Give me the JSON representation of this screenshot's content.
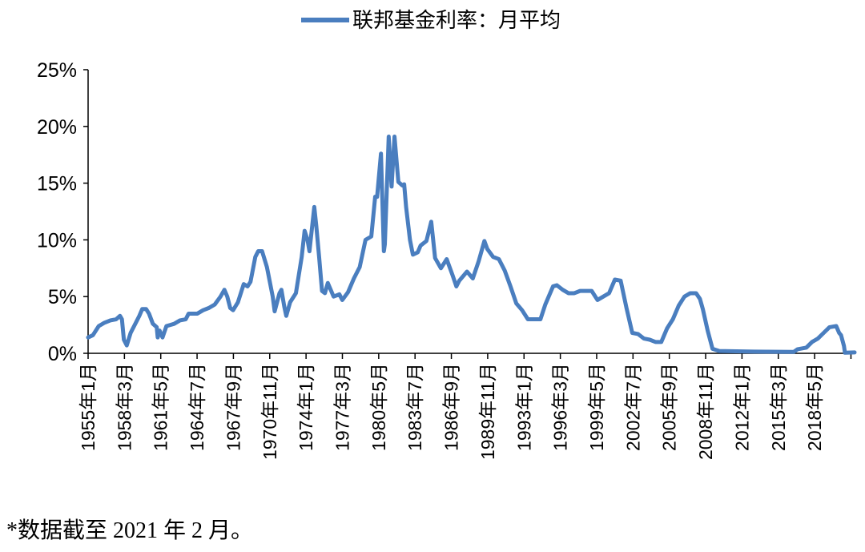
{
  "chart_data": {
    "type": "line",
    "title": "",
    "xlabel": "",
    "ylabel": "",
    "legend": {
      "position": "top-center",
      "entries": [
        "联邦基金利率：月平均"
      ]
    },
    "ylim": [
      0,
      25
    ],
    "y_ticks": [
      "0%",
      "5%",
      "10%",
      "15%",
      "20%",
      "25%"
    ],
    "y_tick_values": [
      0,
      5,
      10,
      15,
      20,
      25
    ],
    "x_range": [
      "1955-01",
      "2021-02"
    ],
    "x_tick_labels": [
      "1955年1月",
      "1958年3月",
      "1961年5月",
      "1964年7月",
      "1967年9月",
      "1970年11月",
      "1974年1月",
      "1977年3月",
      "1980年5月",
      "1983年7月",
      "1986年9月",
      "1989年11月",
      "1993年1月",
      "1996年3月",
      "1999年5月",
      "2002年7月",
      "2005年9月",
      "2008年11月",
      "2012年1月",
      "2015年3月",
      "2018年5月"
    ],
    "grid": false,
    "colors": {
      "series": "#4a7ebf",
      "axis": "#000000"
    },
    "series": [
      {
        "name": "联邦基金利率：月平均",
        "points": [
          [
            "1955-01",
            1.4
          ],
          [
            "1955-06",
            1.6
          ],
          [
            "1955-12",
            2.4
          ],
          [
            "1956-06",
            2.7
          ],
          [
            "1956-12",
            2.9
          ],
          [
            "1957-06",
            3.0
          ],
          [
            "1957-10",
            3.3
          ],
          [
            "1957-12",
            3.0
          ],
          [
            "1958-02",
            1.2
          ],
          [
            "1958-05",
            0.7
          ],
          [
            "1958-09",
            1.8
          ],
          [
            "1959-03",
            2.8
          ],
          [
            "1959-06",
            3.3
          ],
          [
            "1959-09",
            3.9
          ],
          [
            "1960-01",
            3.9
          ],
          [
            "1960-04",
            3.5
          ],
          [
            "1960-08",
            2.6
          ],
          [
            "1960-12",
            2.3
          ],
          [
            "1961-01",
            1.4
          ],
          [
            "1961-03",
            2.0
          ],
          [
            "1961-06",
            1.4
          ],
          [
            "1961-10",
            2.4
          ],
          [
            "1962-02",
            2.5
          ],
          [
            "1962-06",
            2.6
          ],
          [
            "1962-12",
            2.9
          ],
          [
            "1963-06",
            3.0
          ],
          [
            "1963-09",
            3.5
          ],
          [
            "1964-06",
            3.5
          ],
          [
            "1964-12",
            3.8
          ],
          [
            "1965-06",
            4.0
          ],
          [
            "1965-12",
            4.3
          ],
          [
            "1966-06",
            5.0
          ],
          [
            "1966-10",
            5.6
          ],
          [
            "1967-01",
            5.0
          ],
          [
            "1967-04",
            4.0
          ],
          [
            "1967-07",
            3.8
          ],
          [
            "1967-12",
            4.5
          ],
          [
            "1968-06",
            6.1
          ],
          [
            "1968-10",
            5.9
          ],
          [
            "1969-01",
            6.3
          ],
          [
            "1969-06",
            8.5
          ],
          [
            "1969-09",
            9.0
          ],
          [
            "1970-01",
            9.0
          ],
          [
            "1970-06",
            7.6
          ],
          [
            "1970-12",
            5.0
          ],
          [
            "1971-02",
            3.7
          ],
          [
            "1971-07",
            5.3
          ],
          [
            "1971-09",
            5.6
          ],
          [
            "1971-12",
            4.1
          ],
          [
            "1972-02",
            3.3
          ],
          [
            "1972-06",
            4.5
          ],
          [
            "1972-12",
            5.3
          ],
          [
            "1973-06",
            8.5
          ],
          [
            "1973-09",
            10.8
          ],
          [
            "1973-12",
            10.0
          ],
          [
            "1974-02",
            9.0
          ],
          [
            "1974-07",
            12.9
          ],
          [
            "1974-09",
            11.3
          ],
          [
            "1974-12",
            8.5
          ],
          [
            "1975-03",
            5.5
          ],
          [
            "1975-06",
            5.3
          ],
          [
            "1975-09",
            6.2
          ],
          [
            "1976-03",
            5.0
          ],
          [
            "1976-09",
            5.2
          ],
          [
            "1976-12",
            4.7
          ],
          [
            "1977-06",
            5.4
          ],
          [
            "1977-12",
            6.6
          ],
          [
            "1978-06",
            7.6
          ],
          [
            "1978-12",
            10.0
          ],
          [
            "1979-06",
            10.3
          ],
          [
            "1979-10",
            13.8
          ],
          [
            "1979-12",
            13.8
          ],
          [
            "1980-04",
            17.6
          ],
          [
            "1980-07",
            9.0
          ],
          [
            "1980-08",
            9.6
          ],
          [
            "1980-12",
            19.1
          ],
          [
            "1981-03",
            14.7
          ],
          [
            "1981-06",
            19.1
          ],
          [
            "1981-10",
            15.1
          ],
          [
            "1982-02",
            14.8
          ],
          [
            "1982-04",
            14.9
          ],
          [
            "1982-06",
            12.9
          ],
          [
            "1982-10",
            10.0
          ],
          [
            "1983-01",
            8.7
          ],
          [
            "1983-06",
            8.9
          ],
          [
            "1983-09",
            9.5
          ],
          [
            "1984-03",
            9.9
          ],
          [
            "1984-08",
            11.6
          ],
          [
            "1984-12",
            8.4
          ],
          [
            "1985-06",
            7.5
          ],
          [
            "1985-12",
            8.3
          ],
          [
            "1986-06",
            6.9
          ],
          [
            "1986-10",
            5.9
          ],
          [
            "1987-01",
            6.4
          ],
          [
            "1987-09",
            7.2
          ],
          [
            "1988-03",
            6.6
          ],
          [
            "1988-09",
            8.1
          ],
          [
            "1989-03",
            9.9
          ],
          [
            "1989-06",
            9.2
          ],
          [
            "1989-12",
            8.5
          ],
          [
            "1990-06",
            8.3
          ],
          [
            "1990-12",
            7.3
          ],
          [
            "1991-06",
            5.9
          ],
          [
            "1991-12",
            4.4
          ],
          [
            "1992-06",
            3.8
          ],
          [
            "1992-12",
            3.0
          ],
          [
            "1993-06",
            3.0
          ],
          [
            "1994-01",
            3.0
          ],
          [
            "1994-06",
            4.3
          ],
          [
            "1995-02",
            5.9
          ],
          [
            "1995-06",
            6.0
          ],
          [
            "1995-12",
            5.6
          ],
          [
            "1996-06",
            5.3
          ],
          [
            "1996-12",
            5.3
          ],
          [
            "1997-06",
            5.5
          ],
          [
            "1998-06",
            5.5
          ],
          [
            "1998-12",
            4.7
          ],
          [
            "1999-06",
            5.0
          ],
          [
            "1999-12",
            5.3
          ],
          [
            "2000-06",
            6.5
          ],
          [
            "2000-12",
            6.4
          ],
          [
            "2001-06",
            4.0
          ],
          [
            "2001-12",
            1.8
          ],
          [
            "2002-06",
            1.7
          ],
          [
            "2002-12",
            1.3
          ],
          [
            "2003-06",
            1.2
          ],
          [
            "2003-12",
            1.0
          ],
          [
            "2004-06",
            1.0
          ],
          [
            "2004-12",
            2.2
          ],
          [
            "2005-06",
            3.0
          ],
          [
            "2005-12",
            4.2
          ],
          [
            "2006-06",
            5.0
          ],
          [
            "2006-12",
            5.3
          ],
          [
            "2007-06",
            5.3
          ],
          [
            "2007-10",
            4.8
          ],
          [
            "2008-01",
            3.9
          ],
          [
            "2008-06",
            2.0
          ],
          [
            "2008-11",
            0.4
          ],
          [
            "2009-06",
            0.2
          ],
          [
            "2012-06",
            0.15
          ],
          [
            "2015-11",
            0.12
          ],
          [
            "2016-03",
            0.36
          ],
          [
            "2016-12",
            0.5
          ],
          [
            "2017-06",
            1.0
          ],
          [
            "2017-12",
            1.3
          ],
          [
            "2018-06",
            1.8
          ],
          [
            "2018-12",
            2.3
          ],
          [
            "2019-07",
            2.4
          ],
          [
            "2019-10",
            1.8
          ],
          [
            "2019-12",
            1.6
          ],
          [
            "2020-03",
            0.65
          ],
          [
            "2020-04",
            0.05
          ],
          [
            "2021-02",
            0.08
          ]
        ]
      }
    ]
  },
  "footnote": "*数据截至 2021 年 2 月。"
}
